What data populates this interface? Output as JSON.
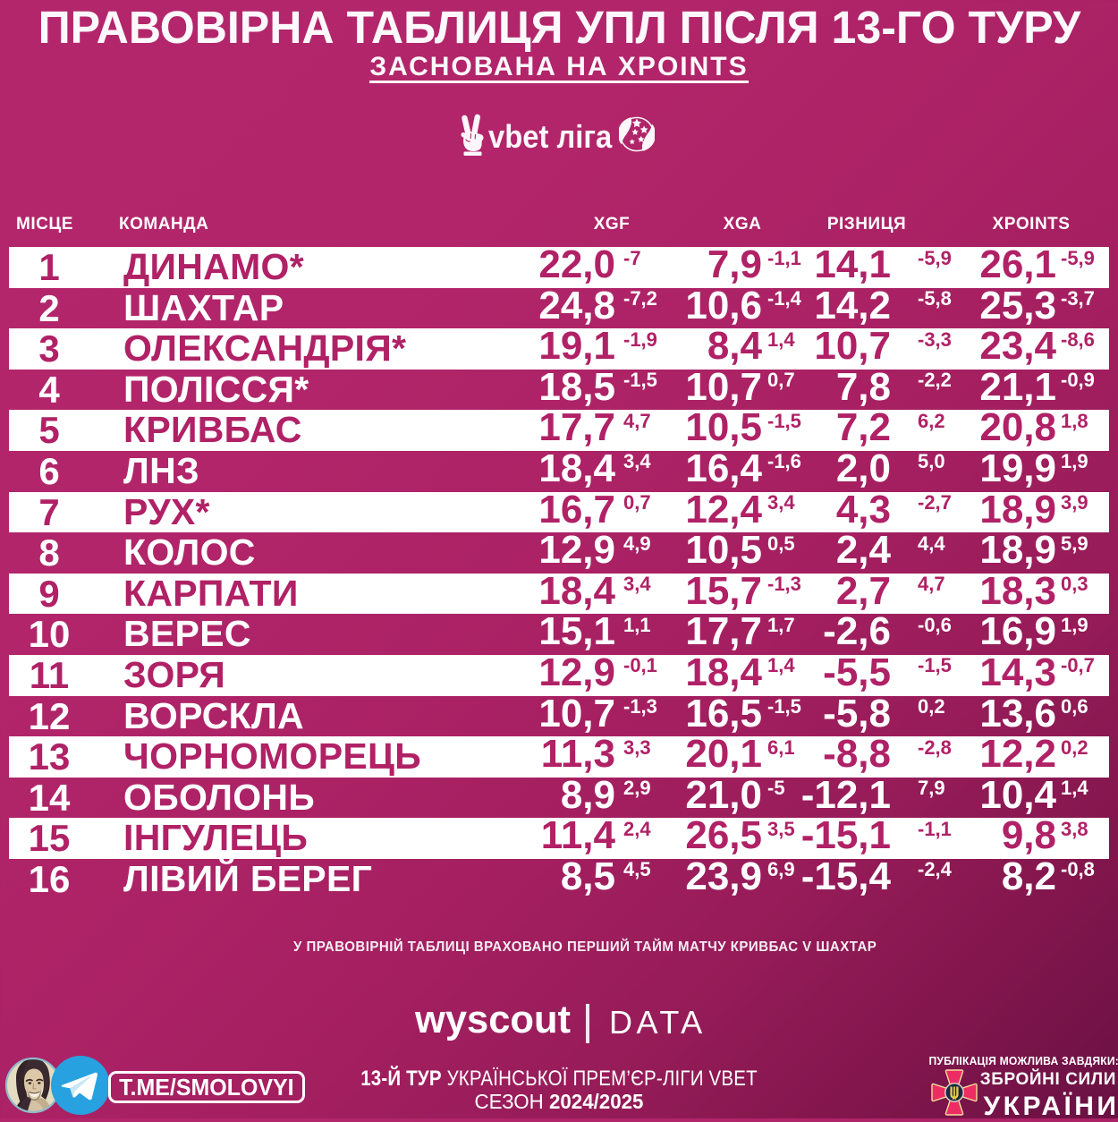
{
  "header": {
    "title": "ПРАВОВІРНА ТАБЛИЦЯ УПЛ ПІСЛЯ 13-ГО ТУРУ",
    "subtitle": "ЗАСНОВАНА НА XPOINTS",
    "league_logo_text": "vbet ліга"
  },
  "table": {
    "columns": {
      "place": "МІСЦЕ",
      "team": "КОМАНДА",
      "xgf": "XGF",
      "xga": "XGA",
      "diff": "РІЗНИЦЯ",
      "xpoints": "XPOINTS"
    },
    "rows": [
      {
        "rank": "1",
        "team": "ДИНАМО*",
        "xgf": "22,0",
        "xgf_d": "-7",
        "xga": "7,9",
        "xga_d": "-1,1",
        "diff": "14,1",
        "diff_d": "-5,9",
        "xpts": "26,1",
        "xpts_d": "-5,9"
      },
      {
        "rank": "2",
        "team": "ШАХТАР",
        "xgf": "24,8",
        "xgf_d": "-7,2",
        "xga": "10,6",
        "xga_d": "-1,4",
        "diff": "14,2",
        "diff_d": "-5,8",
        "xpts": "25,3",
        "xpts_d": "-3,7"
      },
      {
        "rank": "3",
        "team": "ОЛЕКСАНДРІЯ*",
        "xgf": "19,1",
        "xgf_d": "-1,9",
        "xga": "8,4",
        "xga_d": "1,4",
        "diff": "10,7",
        "diff_d": "-3,3",
        "xpts": "23,4",
        "xpts_d": "-8,6"
      },
      {
        "rank": "4",
        "team": "ПОЛІССЯ*",
        "xgf": "18,5",
        "xgf_d": "-1,5",
        "xga": "10,7",
        "xga_d": "0,7",
        "diff": "7,8",
        "diff_d": "-2,2",
        "xpts": "21,1",
        "xpts_d": "-0,9"
      },
      {
        "rank": "5",
        "team": "КРИВБАС",
        "xgf": "17,7",
        "xgf_d": "4,7",
        "xga": "10,5",
        "xga_d": "-1,5",
        "diff": "7,2",
        "diff_d": "6,2",
        "xpts": "20,8",
        "xpts_d": "1,8"
      },
      {
        "rank": "6",
        "team": "ЛНЗ",
        "xgf": "18,4",
        "xgf_d": "3,4",
        "xga": "16,4",
        "xga_d": "-1,6",
        "diff": "2,0",
        "diff_d": "5,0",
        "xpts": "19,9",
        "xpts_d": "1,9"
      },
      {
        "rank": "7",
        "team": "РУХ*",
        "xgf": "16,7",
        "xgf_d": "0,7",
        "xga": "12,4",
        "xga_d": "3,4",
        "diff": "4,3",
        "diff_d": "-2,7",
        "xpts": "18,9",
        "xpts_d": "3,9"
      },
      {
        "rank": "8",
        "team": "КОЛОС",
        "xgf": "12,9",
        "xgf_d": "4,9",
        "xga": "10,5",
        "xga_d": "0,5",
        "diff": "2,4",
        "diff_d": "4,4",
        "xpts": "18,9",
        "xpts_d": "5,9"
      },
      {
        "rank": "9",
        "team": "КАРПАТИ",
        "xgf": "18,4",
        "xgf_d": "3,4",
        "xga": "15,7",
        "xga_d": "-1,3",
        "diff": "2,7",
        "diff_d": "4,7",
        "xpts": "18,3",
        "xpts_d": "0,3"
      },
      {
        "rank": "10",
        "team": "ВЕРЕС",
        "xgf": "15,1",
        "xgf_d": "1,1",
        "xga": "17,7",
        "xga_d": "1,7",
        "diff": "-2,6",
        "diff_d": "-0,6",
        "xpts": "16,9",
        "xpts_d": "1,9"
      },
      {
        "rank": "11",
        "team": "ЗОРЯ",
        "xgf": "12,9",
        "xgf_d": "-0,1",
        "xga": "18,4",
        "xga_d": "1,4",
        "diff": "-5,5",
        "diff_d": "-1,5",
        "xpts": "14,3",
        "xpts_d": "-0,7"
      },
      {
        "rank": "12",
        "team": "ВОРСКЛА",
        "xgf": "10,7",
        "xgf_d": "-1,3",
        "xga": "16,5",
        "xga_d": "-1,5",
        "diff": "-5,8",
        "diff_d": "0,2",
        "xpts": "13,6",
        "xpts_d": "0,6"
      },
      {
        "rank": "13",
        "team": "ЧОРНОМОРЕЦЬ",
        "xgf": "11,3",
        "xgf_d": "3,3",
        "xga": "20,1",
        "xga_d": "6,1",
        "diff": "-8,8",
        "diff_d": "-2,8",
        "xpts": "12,2",
        "xpts_d": "0,2"
      },
      {
        "rank": "14",
        "team": "ОБОЛОНЬ",
        "xgf": "8,9",
        "xgf_d": "2,9",
        "xga": "21,0",
        "xga_d": "-5",
        "diff": "-12,1",
        "diff_d": "7,9",
        "xpts": "10,4",
        "xpts_d": "1,4"
      },
      {
        "rank": "15",
        "team": "ІНГУЛЕЦЬ",
        "xgf": "11,4",
        "xgf_d": "2,4",
        "xga": "26,5",
        "xga_d": "3,5",
        "diff": "-15,1",
        "diff_d": "-1,1",
        "xpts": "9,8",
        "xpts_d": "3,8"
      },
      {
        "rank": "16",
        "team": "ЛІВИЙ БЕРЕГ",
        "xgf": "8,5",
        "xgf_d": "4,5",
        "xga": "23,9",
        "xga_d": "6,9",
        "diff": "-15,4",
        "diff_d": "-2,4",
        "xpts": "8,2",
        "xpts_d": "-0,8"
      }
    ]
  },
  "note": "У ПРАВОВІРНІЙ ТАБЛИЦІ ВРАХОВАНО ПЕРШИЙ ТАЙМ МАТЧУ КРИВБАС V ШАХТАР",
  "data_logo": {
    "wordmark": "wyscout",
    "suffix": "DATA"
  },
  "footer": {
    "telegram_handle": "T.ME/SMOLOVYI",
    "round_line_bold": "13-Й ТУР",
    "round_line_rest": " УКРАЇНСЬКОЇ ПРЕМ’ЄР-ЛІГИ VBET",
    "season_label": "СЕЗОН ",
    "season_value": "2024/2025",
    "credit_label": "ПУБЛІКАЦІЯ МОЖЛИВА ЗАВДЯКИ:",
    "credit_org_line1": "ЗБРОЙНІ СИЛИ",
    "credit_org_line2": "УКРАЇНИ"
  },
  "colors": {
    "background_magenta": "#b3256b",
    "background_dark": "#5f0e3e",
    "row_white": "#ffffff",
    "text_magenta": "#ad1e63",
    "telegram_blue": "#27a1e0"
  },
  "chart_data": {
    "type": "table",
    "title": "ПРАВОВІРНА ТАБЛИЦЯ УПЛ ПІСЛЯ 13-ГО ТУРУ",
    "subtitle": "ЗАСНОВАНА НА XPOINTS",
    "columns": [
      "МІСЦЕ",
      "КОМАНДА",
      "XGF",
      "XGF +/-",
      "XGA",
      "XGA +/-",
      "РІЗНИЦЯ",
      "РІЗНИЦЯ +/-",
      "XPOINTS",
      "XPOINTS +/-"
    ],
    "rows": [
      [
        "1",
        "ДИНАМО*",
        "22,0",
        "-7",
        "7,9",
        "-1,1",
        "14,1",
        "-5,9",
        "26,1",
        "-5,9"
      ],
      [
        "2",
        "ШАХТАР",
        "24,8",
        "-7,2",
        "10,6",
        "-1,4",
        "14,2",
        "-5,8",
        "25,3",
        "-3,7"
      ],
      [
        "3",
        "ОЛЕКСАНДРІЯ*",
        "19,1",
        "-1,9",
        "8,4",
        "1,4",
        "10,7",
        "-3,3",
        "23,4",
        "-8,6"
      ],
      [
        "4",
        "ПОЛІССЯ*",
        "18,5",
        "-1,5",
        "10,7",
        "0,7",
        "7,8",
        "-2,2",
        "21,1",
        "-0,9"
      ],
      [
        "5",
        "КРИВБАС",
        "17,7",
        "4,7",
        "10,5",
        "-1,5",
        "7,2",
        "6,2",
        "20,8",
        "1,8"
      ],
      [
        "6",
        "ЛНЗ",
        "18,4",
        "3,4",
        "16,4",
        "-1,6",
        "2,0",
        "5,0",
        "19,9",
        "1,9"
      ],
      [
        "7",
        "РУХ*",
        "16,7",
        "0,7",
        "12,4",
        "3,4",
        "4,3",
        "-2,7",
        "18,9",
        "3,9"
      ],
      [
        "8",
        "КОЛОС",
        "12,9",
        "4,9",
        "10,5",
        "0,5",
        "2,4",
        "4,4",
        "18,9",
        "5,9"
      ],
      [
        "9",
        "КАРПАТИ",
        "18,4",
        "3,4",
        "15,7",
        "-1,3",
        "2,7",
        "4,7",
        "18,3",
        "0,3"
      ],
      [
        "10",
        "ВЕРЕС",
        "15,1",
        "1,1",
        "17,7",
        "1,7",
        "-2,6",
        "-0,6",
        "16,9",
        "1,9"
      ],
      [
        "11",
        "ЗОРЯ",
        "12,9",
        "-0,1",
        "18,4",
        "1,4",
        "-5,5",
        "-1,5",
        "14,3",
        "-0,7"
      ],
      [
        "12",
        "ВОРСКЛА",
        "10,7",
        "-1,3",
        "16,5",
        "-1,5",
        "-5,8",
        "0,2",
        "13,6",
        "0,6"
      ],
      [
        "13",
        "ЧОРНОМОРЕЦЬ",
        "11,3",
        "3,3",
        "20,1",
        "6,1",
        "-8,8",
        "-2,8",
        "12,2",
        "0,2"
      ],
      [
        "14",
        "ОБОЛОНЬ",
        "8,9",
        "2,9",
        "21,0",
        "-5",
        "-12,1",
        "7,9",
        "10,4",
        "1,4"
      ],
      [
        "15",
        "ІНГУЛЕЦЬ",
        "11,4",
        "2,4",
        "26,5",
        "3,5",
        "-15,1",
        "-1,1",
        "9,8",
        "3,8"
      ],
      [
        "16",
        "ЛІВИЙ БЕРЕГ",
        "8,5",
        "4,5",
        "23,9",
        "6,9",
        "-15,4",
        "-2,4",
        "8,2",
        "-0,8"
      ]
    ]
  }
}
